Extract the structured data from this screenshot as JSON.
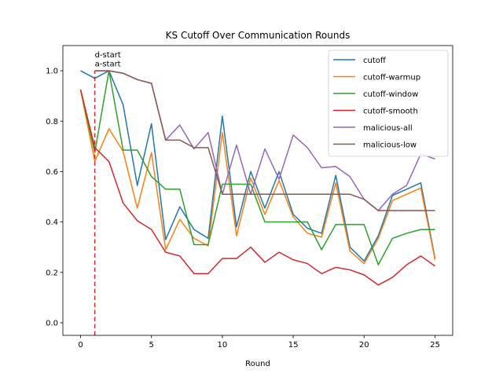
{
  "chart_data": {
    "type": "line",
    "title": "KS Cutoff Over Communication Rounds",
    "xlabel": "Round",
    "ylabel": "",
    "xlim": [
      -1.25,
      26.25
    ],
    "ylim": [
      -0.05,
      1.1
    ],
    "xticks": [
      0,
      5,
      10,
      15,
      20,
      25
    ],
    "yticks": [
      0.0,
      0.2,
      0.4,
      0.6,
      0.8,
      1.0
    ],
    "xtick_labels": [
      "0",
      "5",
      "10",
      "15",
      "20",
      "25"
    ],
    "ytick_labels": [
      "0.0",
      "0.2",
      "0.4",
      "0.6",
      "0.8",
      "1.0"
    ],
    "grid": false,
    "legend_position": "top-right",
    "x": [
      0,
      1,
      2,
      3,
      4,
      5,
      6,
      7,
      8,
      9,
      10,
      11,
      12,
      13,
      14,
      15,
      16,
      17,
      18,
      19,
      20,
      21,
      22,
      23,
      24,
      25
    ],
    "series": [
      {
        "name": "cutoff",
        "color": "#1f77b4",
        "values": [
          1.0,
          0.97,
          1.0,
          0.865,
          0.545,
          0.79,
          0.33,
          0.46,
          0.37,
          0.335,
          0.82,
          0.38,
          0.6,
          0.455,
          0.6,
          0.43,
          0.375,
          0.355,
          0.585,
          0.3,
          0.245,
          0.345,
          0.505,
          0.53,
          0.555,
          0.255
        ]
      },
      {
        "name": "cutoff-warmup",
        "color": "#ff7f0e",
        "values": [
          0.925,
          0.64,
          0.77,
          0.68,
          0.455,
          0.675,
          0.29,
          0.41,
          0.335,
          0.305,
          0.755,
          0.345,
          0.575,
          0.43,
          0.565,
          0.42,
          0.355,
          0.34,
          0.555,
          0.285,
          0.235,
          0.335,
          0.485,
          0.51,
          0.535,
          0.25
        ]
      },
      {
        "name": "cutoff-window",
        "color": "#2ca02c",
        "values": [
          0.925,
          0.675,
          1.0,
          0.685,
          0.685,
          0.58,
          0.53,
          0.53,
          0.31,
          0.31,
          0.55,
          0.55,
          0.55,
          0.4,
          0.4,
          0.4,
          0.4,
          0.29,
          0.39,
          0.39,
          0.39,
          0.23,
          0.335,
          0.355,
          0.37,
          0.37
        ]
      },
      {
        "name": "cutoff-smooth",
        "color": "#d62728",
        "values": [
          0.925,
          0.695,
          0.64,
          0.475,
          0.405,
          0.37,
          0.28,
          0.265,
          0.195,
          0.195,
          0.255,
          0.255,
          0.3,
          0.24,
          0.28,
          0.25,
          0.235,
          0.195,
          0.22,
          0.21,
          0.19,
          0.15,
          0.18,
          0.23,
          0.265,
          0.225
        ]
      },
      {
        "name": "malicious-all",
        "color": "#9467bd",
        "values": [
          null,
          1.0,
          1.0,
          0.99,
          0.965,
          0.95,
          0.725,
          0.785,
          0.69,
          0.755,
          0.51,
          0.705,
          0.51,
          0.69,
          0.57,
          0.745,
          0.695,
          0.615,
          0.62,
          0.58,
          0.49,
          0.445,
          0.51,
          0.545,
          0.67,
          0.65
        ]
      },
      {
        "name": "malicious-low",
        "color": "#8c564b",
        "values": [
          null,
          1.0,
          1.0,
          0.99,
          0.965,
          0.95,
          0.725,
          0.725,
          0.695,
          0.695,
          0.51,
          0.51,
          0.51,
          0.51,
          0.51,
          0.51,
          0.51,
          0.51,
          0.51,
          0.51,
          0.49,
          0.445,
          0.445,
          0.445,
          0.445,
          0.445
        ]
      }
    ],
    "vline": {
      "x": 1,
      "color": "#d62728",
      "y_from": -0.05,
      "y_to": 1.0
    },
    "annotations": [
      {
        "text": "d-start",
        "x": 1,
        "y": 1.065
      },
      {
        "text": "a-start",
        "x": 1,
        "y": 1.03
      }
    ]
  }
}
